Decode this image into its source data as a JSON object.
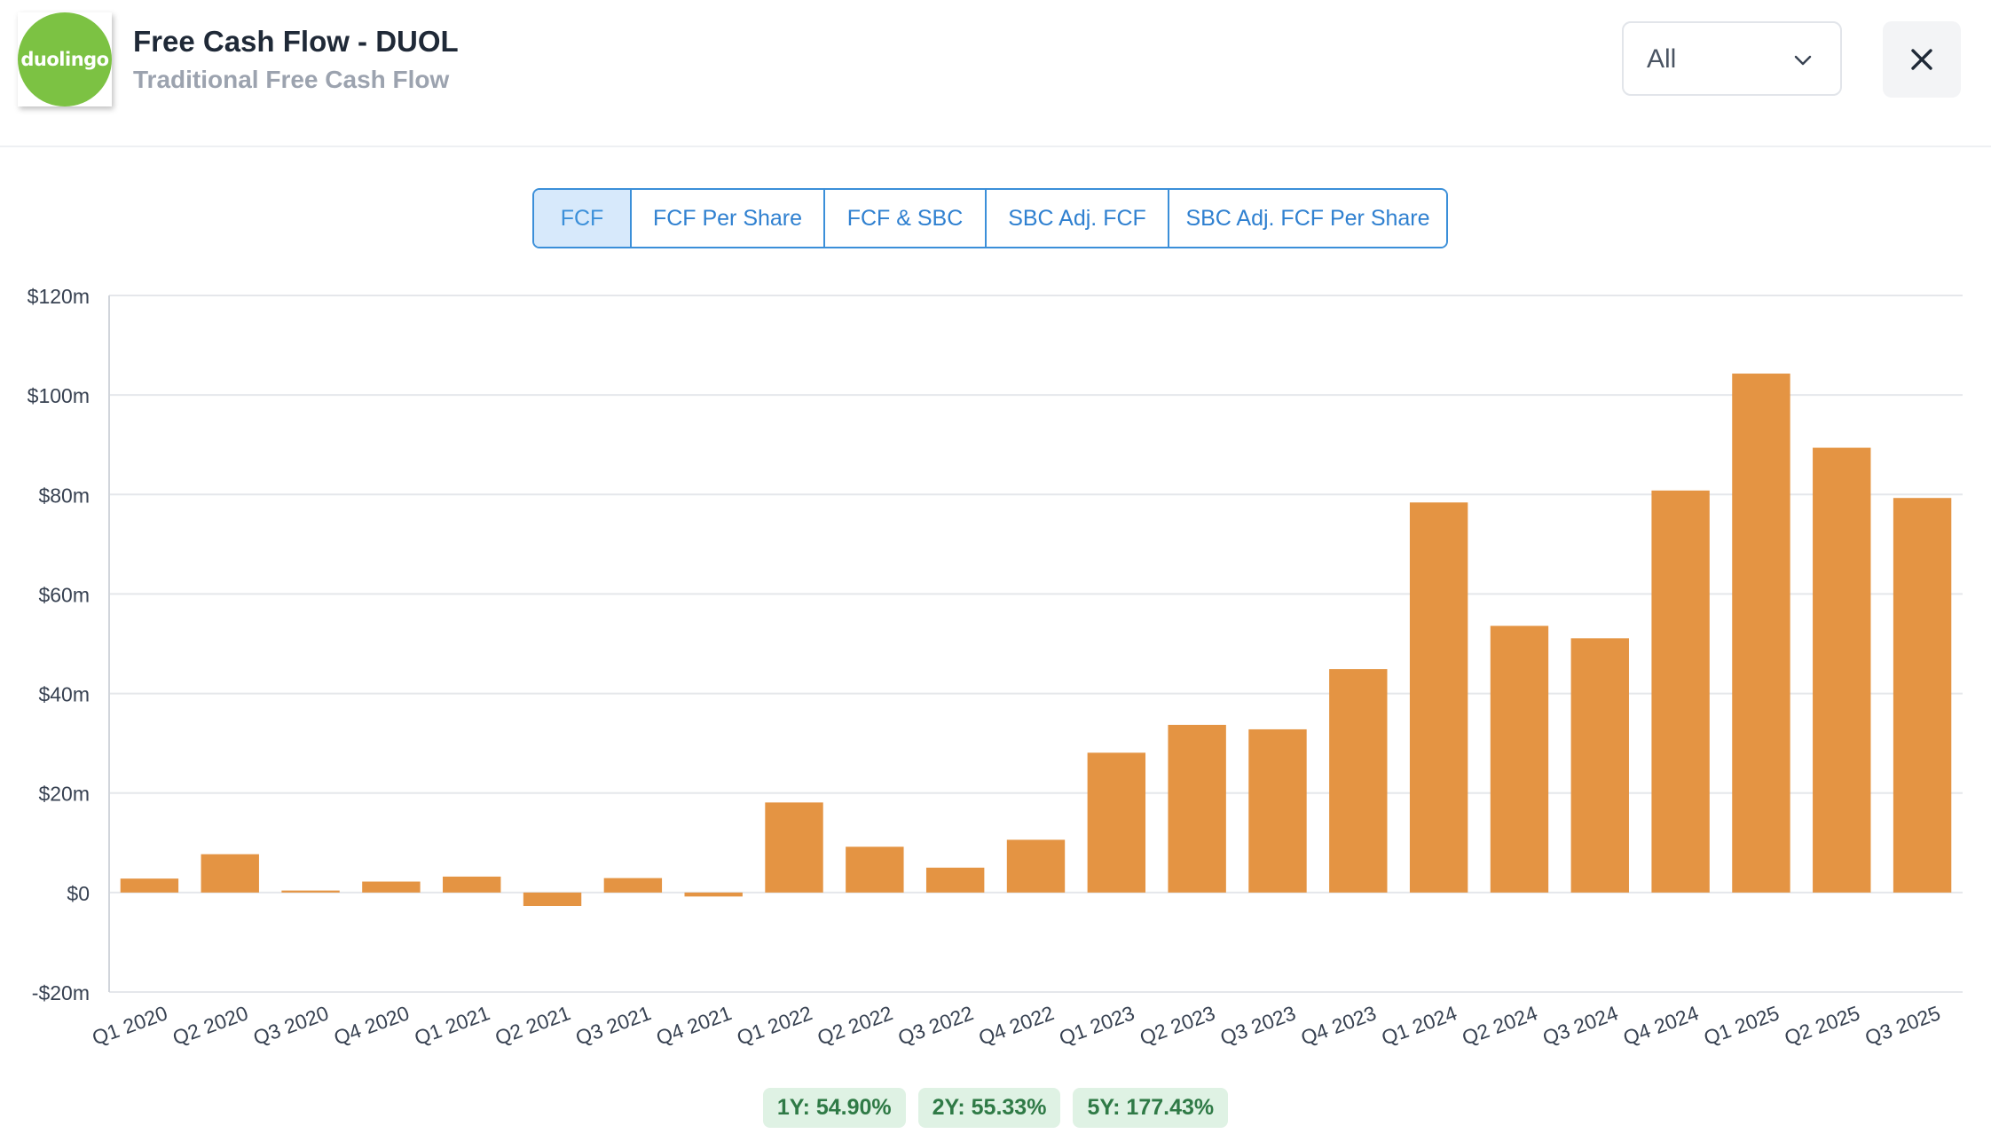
{
  "header": {
    "logo_text": "duolingo",
    "title": "Free Cash Flow - DUOL",
    "subtitle": "Traditional Free Cash Flow",
    "period_select": "All"
  },
  "tabs": [
    {
      "label": "FCF",
      "active": true
    },
    {
      "label": "FCF Per Share",
      "active": false
    },
    {
      "label": "FCF & SBC",
      "active": false
    },
    {
      "label": "SBC Adj. FCF",
      "active": false
    },
    {
      "label": "SBC Adj. FCF Per Share",
      "active": false
    }
  ],
  "colors": {
    "bar": "#e49443",
    "accent": "#3b8fd9",
    "grid": "#e5e7eb",
    "badge_bg": "#dff2e4",
    "badge_text": "#2f7a46"
  },
  "chart_data": {
    "type": "bar",
    "categories": [
      "Q1 2020",
      "Q2 2020",
      "Q3 2020",
      "Q4 2020",
      "Q1 2021",
      "Q2 2021",
      "Q3 2021",
      "Q4 2021",
      "Q1 2022",
      "Q2 2022",
      "Q3 2022",
      "Q4 2022",
      "Q1 2023",
      "Q2 2023",
      "Q3 2023",
      "Q4 2023",
      "Q1 2024",
      "Q2 2024",
      "Q3 2024",
      "Q4 2024",
      "Q1 2025",
      "Q2 2025",
      "Q3 2025"
    ],
    "values": [
      2.8,
      7.7,
      0.4,
      2.2,
      3.2,
      -2.7,
      2.9,
      -0.8,
      18.1,
      9.2,
      5.0,
      10.6,
      28.1,
      33.7,
      32.8,
      44.9,
      78.4,
      53.6,
      51.1,
      80.8,
      104.3,
      89.4,
      79.3
    ],
    "unit": "$m",
    "ylim": [
      -20,
      120
    ],
    "yticks": [
      -20,
      0,
      20,
      40,
      60,
      80,
      100,
      120
    ],
    "ytick_labels": [
      "-$20m",
      "$0",
      "$20m",
      "$40m",
      "$60m",
      "$80m",
      "$100m",
      "$120m"
    ],
    "grid": true,
    "legend": "none"
  },
  "growth": [
    {
      "label": "1Y: 54.90%"
    },
    {
      "label": "2Y: 55.33%"
    },
    {
      "label": "5Y: 177.43%"
    }
  ]
}
